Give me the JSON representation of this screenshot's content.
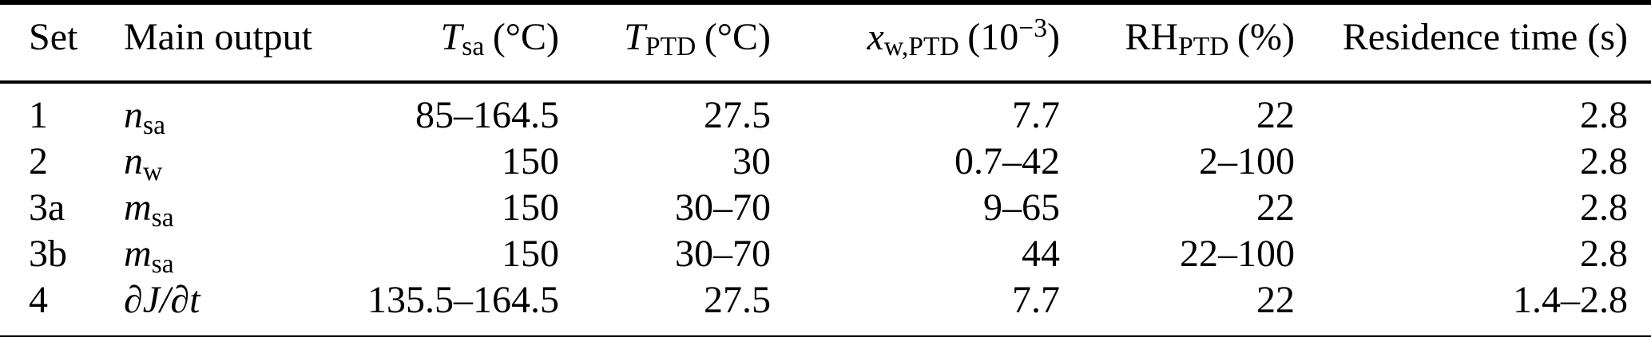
{
  "table": {
    "header": {
      "set": "Set",
      "main_output": "Main output",
      "t_sa": {
        "symbol": "T",
        "subscript": "sa",
        "unit": "(°C)"
      },
      "t_ptd": {
        "symbol": "T",
        "subscript": "PTD",
        "unit": "(°C)"
      },
      "x_w_ptd": {
        "symbol": "x",
        "subscript": "w,PTD",
        "unit_open": "(10",
        "exponent": "−3",
        "unit_close": ")"
      },
      "rh_ptd": {
        "symbol": "RH",
        "subscript": "PTD",
        "unit": "(%)"
      },
      "residence_time": "Residence time (s)"
    },
    "rows": [
      {
        "set": "1",
        "output_symbol": "n",
        "output_subscript": "sa",
        "t_sa": "85–164.5",
        "t_ptd": "27.5",
        "x_w_ptd": "7.7",
        "rh_ptd": "22",
        "residence_time": "2.8"
      },
      {
        "set": "2",
        "output_symbol": "n",
        "output_subscript": "w",
        "t_sa": "150",
        "t_ptd": "30",
        "x_w_ptd": "0.7–42",
        "rh_ptd": "2–100",
        "residence_time": "2.8"
      },
      {
        "set": "3a",
        "output_symbol": "m",
        "output_subscript": "sa",
        "t_sa": "150",
        "t_ptd": "30–70",
        "x_w_ptd": "9–65",
        "rh_ptd": "22",
        "residence_time": "2.8"
      },
      {
        "set": "3b",
        "output_symbol": "m",
        "output_subscript": "sa",
        "t_sa": "150",
        "t_ptd": "30–70",
        "x_w_ptd": "44",
        "rh_ptd": "22–100",
        "residence_time": "2.8"
      },
      {
        "set": "4",
        "output_symbol": "∂J/∂t",
        "output_subscript": "",
        "t_sa": "135.5–164.5",
        "t_ptd": "27.5",
        "x_w_ptd": "7.7",
        "rh_ptd": "22",
        "residence_time": "1.4–2.8"
      }
    ],
    "colors": {
      "text": "#000000",
      "background": "#ffffff",
      "rule": "#000000"
    }
  }
}
